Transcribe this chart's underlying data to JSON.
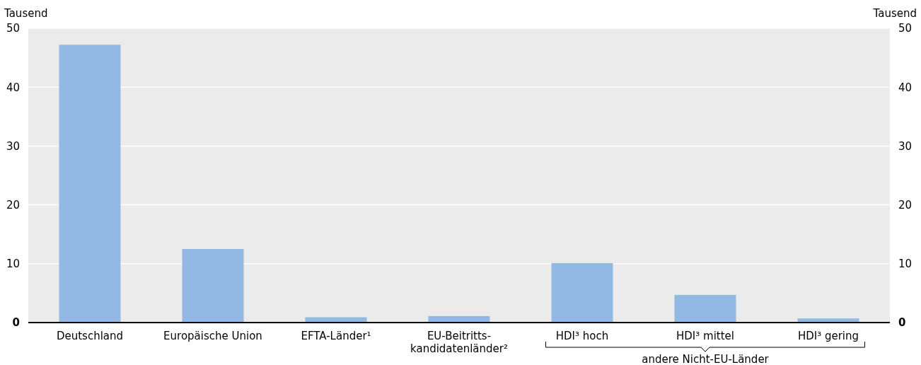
{
  "chart_data": {
    "type": "bar",
    "ylabel": "Tausend",
    "y2label": "Tausend",
    "categories": [
      "Deutschland",
      "Europäische Union",
      "EFTA-Länder¹",
      "EU-Beitritts-\nkandidatenländer²",
      "HDI³ hoch",
      "HDI³ mittel",
      "HDI³ gering"
    ],
    "values": [
      47.2,
      12.5,
      0.9,
      1.1,
      10.1,
      4.7,
      0.7
    ],
    "color": "#92b9e3",
    "ylim": [
      0,
      50
    ],
    "yticks": [
      0,
      10,
      20,
      30,
      40,
      50
    ],
    "y2lim": [
      0,
      50
    ],
    "y2ticks": [
      0,
      10,
      20,
      30,
      40,
      50
    ],
    "grid": "y",
    "annotations": [
      "andere Nicht-EU-Länder"
    ]
  }
}
